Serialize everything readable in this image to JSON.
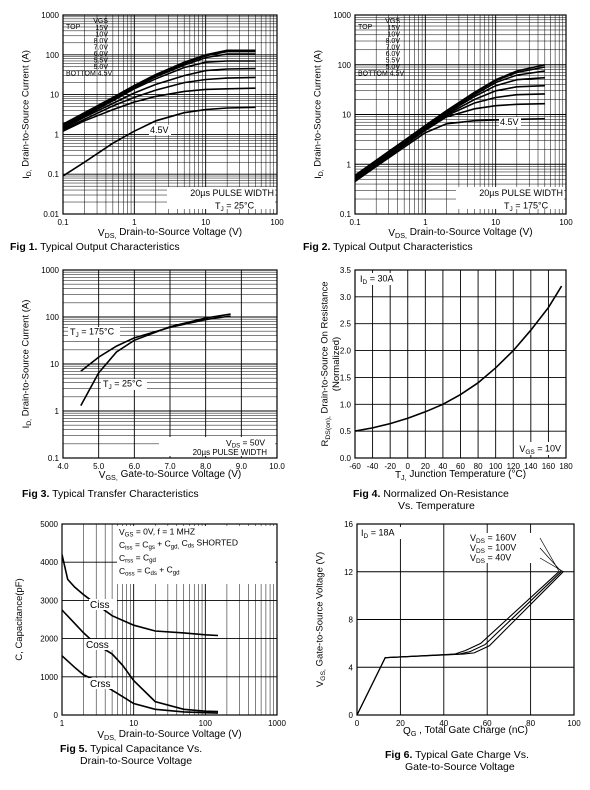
{
  "chart_data": [
    {
      "type": "line",
      "title": "Fig 1.  Typical Output Characteristics",
      "xlabel": "V_DS, Drain-to-Source Voltage (V)",
      "ylabel": "I_D, Drain-to-Source Current (A)",
      "x_scale": "log",
      "y_scale": "log",
      "xlim": [
        0.1,
        100
      ],
      "ylim": [
        0.01,
        1000
      ],
      "x_ticks": [
        "0.1",
        "1",
        "10",
        "100"
      ],
      "y_ticks": [
        "0.01",
        "0.1",
        "1",
        "10",
        "100",
        "1000"
      ],
      "grid": true,
      "legend_header": [
        "TOP",
        "VGS"
      ],
      "legend_entries": [
        "15V",
        "10V",
        "8.0V",
        "7.0V",
        "6.0V",
        "5.5V",
        "5.0V"
      ],
      "legend_footer": [
        "BOTTOM",
        "4.5V"
      ],
      "annotations": [
        "20µs PULSE WIDTH",
        "T_J = 25°C",
        "4.5V"
      ],
      "series": [
        {
          "name": "15V",
          "x": [
            0.1,
            0.2,
            0.5,
            1,
            2,
            5,
            10,
            20,
            50
          ],
          "y": [
            1.8,
            3.5,
            8.5,
            17,
            32,
            65,
            100,
            130,
            130
          ]
        },
        {
          "name": "10V",
          "x": [
            0.1,
            0.2,
            0.5,
            1,
            2,
            5,
            10,
            20,
            50
          ],
          "y": [
            1.7,
            3.3,
            8.0,
            16,
            30,
            60,
            95,
            120,
            120
          ]
        },
        {
          "name": "8.0V",
          "x": [
            0.1,
            0.2,
            0.5,
            1,
            2,
            5,
            10,
            20,
            50
          ],
          "y": [
            1.6,
            3.1,
            7.5,
            15,
            28,
            55,
            85,
            105,
            105
          ]
        },
        {
          "name": "7.0V",
          "x": [
            0.1,
            0.2,
            0.5,
            1,
            2,
            5,
            10,
            20,
            50
          ],
          "y": [
            1.5,
            2.9,
            7.0,
            14,
            25,
            48,
            65,
            70,
            70
          ]
        },
        {
          "name": "6.0V",
          "x": [
            0.1,
            0.2,
            0.5,
            1,
            2,
            5,
            10,
            20,
            50
          ],
          "y": [
            1.4,
            2.7,
            6.0,
            11,
            18,
            30,
            40,
            44,
            45
          ]
        },
        {
          "name": "5.5V",
          "x": [
            0.1,
            0.2,
            0.5,
            1,
            2,
            5,
            10,
            20,
            50
          ],
          "y": [
            1.3,
            2.4,
            5.2,
            8.5,
            13,
            20,
            24,
            26,
            27
          ]
        },
        {
          "name": "5.0V",
          "x": [
            0.1,
            0.2,
            0.5,
            1,
            2,
            5,
            10,
            20,
            50
          ],
          "y": [
            1.2,
            2.2,
            4.2,
            6.5,
            9,
            12,
            13.5,
            14,
            14.5
          ]
        },
        {
          "name": "4.5V",
          "x": [
            0.1,
            0.2,
            0.5,
            1,
            2,
            5,
            10,
            20,
            50
          ],
          "y": [
            0.09,
            0.2,
            0.6,
            1.2,
            2.2,
            3.5,
            4.2,
            4.6,
            4.8
          ]
        }
      ]
    },
    {
      "type": "line",
      "title": "Fig 2.  Typical Output Characteristics",
      "xlabel": "V_DS, Drain-to-Source Voltage (V)",
      "ylabel": "I_D, Drain-to-Source Current (A)",
      "x_scale": "log",
      "y_scale": "log",
      "xlim": [
        0.1,
        100
      ],
      "ylim": [
        0.1,
        1000
      ],
      "x_ticks": [
        "0.1",
        "1",
        "10",
        "100"
      ],
      "y_ticks": [
        "0.1",
        "1",
        "10",
        "100",
        "1000"
      ],
      "grid": true,
      "legend_header": [
        "TOP",
        "VGS"
      ],
      "legend_entries": [
        "15V",
        "10V",
        "8.0V",
        "7.0V",
        "6.0V",
        "5.5V",
        "5.0V"
      ],
      "legend_footer": [
        "BOTTOM",
        "4.5V"
      ],
      "annotations": [
        "20µs PULSE WIDTH",
        "T_J = 175°C",
        "4.5V"
      ],
      "series": [
        {
          "name": "15V",
          "x": [
            0.1,
            0.2,
            0.5,
            1,
            2,
            5,
            10,
            20,
            50
          ],
          "y": [
            0.6,
            1.2,
            3.0,
            6.0,
            12,
            28,
            50,
            75,
            100
          ]
        },
        {
          "name": "10V",
          "x": [
            0.1,
            0.2,
            0.5,
            1,
            2,
            5,
            10,
            20,
            50
          ],
          "y": [
            0.58,
            1.15,
            2.9,
            5.8,
            11.5,
            27,
            48,
            70,
            90
          ]
        },
        {
          "name": "8.0V",
          "x": [
            0.1,
            0.2,
            0.5,
            1,
            2,
            5,
            10,
            20,
            50
          ],
          "y": [
            0.56,
            1.1,
            2.8,
            5.6,
            11,
            25,
            44,
            62,
            75
          ]
        },
        {
          "name": "7.0V",
          "x": [
            0.1,
            0.2,
            0.5,
            1,
            2,
            5,
            10,
            20,
            50
          ],
          "y": [
            0.54,
            1.05,
            2.7,
            5.4,
            10.5,
            23,
            38,
            50,
            55
          ]
        },
        {
          "name": "6.0V",
          "x": [
            0.1,
            0.2,
            0.5,
            1,
            2,
            5,
            10,
            20,
            50
          ],
          "y": [
            0.52,
            1.0,
            2.6,
            5.2,
            10,
            20,
            30,
            36,
            38
          ]
        },
        {
          "name": "5.5V",
          "x": [
            0.1,
            0.2,
            0.5,
            1,
            2,
            5,
            10,
            20,
            50
          ],
          "y": [
            0.5,
            0.98,
            2.5,
            5.0,
            9.5,
            17,
            22,
            25,
            26
          ]
        },
        {
          "name": "5.0V",
          "x": [
            0.1,
            0.2,
            0.5,
            1,
            2,
            5,
            10,
            20,
            50
          ],
          "y": [
            0.48,
            0.95,
            2.4,
            4.8,
            9,
            13,
            15,
            16,
            16.5
          ]
        },
        {
          "name": "4.5V",
          "x": [
            0.1,
            0.2,
            0.5,
            1,
            2,
            5,
            10,
            20,
            50
          ],
          "y": [
            0.45,
            0.9,
            2.2,
            4.3,
            6.5,
            7.5,
            7.8,
            8,
            8.2
          ]
        }
      ]
    },
    {
      "type": "line",
      "title": "Fig 3.  Typical Transfer Characteristics",
      "xlabel": "V_GS, Gate-to-Source Voltage (V)",
      "ylabel": "I_D, Drain-to-Source Current (A)",
      "x_scale": "linear",
      "y_scale": "log",
      "xlim": [
        4.0,
        10.0
      ],
      "ylim": [
        0.1,
        1000
      ],
      "x_ticks": [
        "4.0",
        "5.0",
        "6.0",
        "7.0",
        "8.0",
        "9.0",
        "10.0"
      ],
      "y_ticks": [
        "0.1",
        "1",
        "10",
        "100",
        "1000"
      ],
      "grid": true,
      "annotations": [
        "V_DS = 50V",
        "20µs PULSE WIDTH"
      ],
      "series": [
        {
          "name": "T_J = 175°C",
          "x": [
            4.5,
            5.0,
            5.5,
            6.0,
            7.0,
            8.0,
            8.7
          ],
          "y": [
            7,
            14,
            24,
            36,
            60,
            88,
            105
          ]
        },
        {
          "name": "T_J = 25°C",
          "x": [
            4.5,
            5.0,
            5.5,
            6.0,
            7.0,
            8.0,
            8.7
          ],
          "y": [
            1.3,
            6.5,
            18,
            32,
            62,
            95,
            115
          ]
        }
      ]
    },
    {
      "type": "line",
      "title": "Fig 4.  Normalized On-Resistance\nVs. Temperature",
      "xlabel": "T_J, Junction Temperature (°C)",
      "ylabel": "R_DS(on), Drain-to-Source On Resistance (Normalized)",
      "x_scale": "linear",
      "y_scale": "linear",
      "xlim": [
        -60,
        180
      ],
      "ylim": [
        0.0,
        3.5
      ],
      "x_ticks": [
        "-60",
        "-40",
        "-20",
        "0",
        "20",
        "40",
        "60",
        "80",
        "100",
        "120",
        "140",
        "160",
        "180"
      ],
      "y_ticks": [
        "0.0",
        "0.5",
        "1.0",
        "1.5",
        "2.0",
        "2.5",
        "3.0",
        "3.5"
      ],
      "grid": true,
      "annotations": [
        "I_D = 30A",
        "V_GS = 10V"
      ],
      "series": [
        {
          "name": "",
          "x": [
            -60,
            -40,
            -20,
            0,
            20,
            40,
            60,
            80,
            100,
            120,
            140,
            160,
            175
          ],
          "y": [
            0.5,
            0.56,
            0.64,
            0.74,
            0.86,
            1.0,
            1.18,
            1.4,
            1.68,
            2.0,
            2.38,
            2.8,
            3.2
          ]
        }
      ]
    },
    {
      "type": "line",
      "title": "Fig 5.  Typical Capacitance Vs.\nDrain-to-Source Voltage",
      "xlabel": "V_DS, Drain-to-Source Voltage (V)",
      "ylabel": "C, Capacitance(pF)",
      "x_scale": "log",
      "y_scale": "linear",
      "xlim": [
        1,
        1000
      ],
      "ylim": [
        0,
        5000
      ],
      "x_ticks": [
        "1",
        "10",
        "100",
        "1000"
      ],
      "y_ticks": [
        "0",
        "1000",
        "2000",
        "3000",
        "4000",
        "5000"
      ],
      "grid": true,
      "conditions": [
        "V_GS = 0V,     f = 1 MHZ",
        "C_iss = C_gs + C_gd, C_ds  SHORTED",
        "C_rss = C_gd",
        "C_oss = C_ds + C_gd"
      ],
      "series": [
        {
          "name": "Ciss",
          "x": [
            1,
            1.2,
            1.5,
            2,
            3,
            5,
            10,
            20,
            50,
            100,
            150
          ],
          "y": [
            4200,
            3550,
            3350,
            3150,
            2900,
            2600,
            2350,
            2200,
            2150,
            2100,
            2080
          ]
        },
        {
          "name": "Coss",
          "x": [
            1,
            1.5,
            2,
            3,
            5,
            7,
            10,
            20,
            50,
            100,
            150
          ],
          "y": [
            2750,
            2400,
            2150,
            1850,
            1600,
            1300,
            900,
            350,
            150,
            100,
            90
          ]
        },
        {
          "name": "Crss",
          "x": [
            1,
            1.5,
            2,
            3,
            5,
            10,
            20,
            50,
            100,
            150
          ],
          "y": [
            1550,
            1250,
            1050,
            900,
            650,
            300,
            150,
            80,
            60,
            50
          ]
        }
      ]
    },
    {
      "type": "line",
      "title": "Fig 6.  Typical Gate Charge Vs.\nGate-to-Source Voltage",
      "xlabel": "Q_G , Total Gate Charge (nC)",
      "ylabel": "V_GS, Gate-to-Source Voltage (V)",
      "x_scale": "linear",
      "y_scale": "linear",
      "xlim": [
        0,
        100
      ],
      "ylim": [
        0,
        16
      ],
      "x_ticks": [
        "0",
        "20",
        "40",
        "60",
        "80",
        "100"
      ],
      "y_ticks": [
        "0",
        "4",
        "8",
        "12",
        "16"
      ],
      "grid": true,
      "annotations": [
        "I_D = 18A"
      ],
      "series": [
        {
          "name": "V_DS = 160V",
          "x": [
            0,
            13,
            45,
            50,
            57,
            93
          ],
          "y": [
            0,
            4.8,
            5.1,
            5.4,
            6.0,
            12.0
          ]
        },
        {
          "name": "V_DS = 100V",
          "x": [
            0,
            13,
            47,
            52,
            59,
            94
          ],
          "y": [
            0,
            4.8,
            5.1,
            5.3,
            5.9,
            12.0
          ]
        },
        {
          "name": "V_DS = 40V",
          "x": [
            0,
            13,
            49,
            54,
            61,
            95
          ],
          "y": [
            0,
            4.8,
            5.1,
            5.2,
            5.8,
            12.0
          ]
        }
      ]
    }
  ]
}
